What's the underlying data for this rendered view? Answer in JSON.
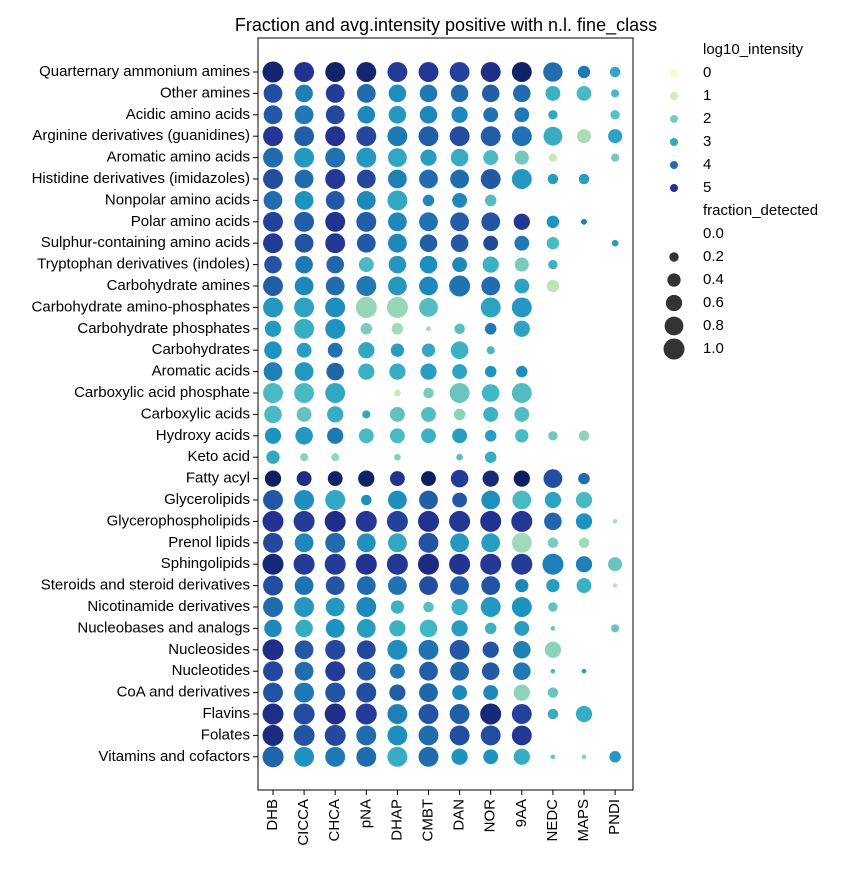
{
  "chart_data": {
    "type": "dot",
    "title": "Fraction and avg.intensity positive with n.l. fine_class",
    "columns": [
      "DHB",
      "CICCA",
      "CHCA",
      "pNA",
      "DHAP",
      "CMBT",
      "DAN",
      "NOR",
      "9AA",
      "NEDC",
      "MAPS",
      "PNDI"
    ],
    "rows": [
      "Quarternary ammonium amines",
      "Other amines",
      "Acidic amino acids",
      "Arginine derivatives (guanidines)",
      "Aromatic amino acids",
      "Histidine derivatives (imidazoles)",
      "Nonpolar amino acids",
      "Polar amino acids",
      "Sulphur-containing amino acids",
      "Tryptophan derivatives (indoles)",
      "Carbohydrate amines",
      "Carbohydrate amino-phosphates",
      "Carbohydrate phosphates",
      "Carbohydrates",
      "Aromatic acids",
      "Carboxylic acid phosphate",
      "Carboxylic acids",
      "Hydroxy acids",
      "Keto acid",
      "Fatty acyl",
      "Glycerolipids",
      "Glycerophospholipids",
      "Prenol lipids",
      "Sphingolipids",
      "Steroids and steroid derivatives",
      "Nicotinamide derivatives",
      "Nucleobases and analogs",
      "Nucleosides",
      "Nucleotides",
      "CoA and derivatives",
      "Flavins",
      "Folates",
      "Vitamins and cofactors"
    ],
    "fraction": [
      [
        1.0,
        0.9,
        0.9,
        0.9,
        0.9,
        0.9,
        0.9,
        0.9,
        0.9,
        0.85,
        0.35,
        0.25
      ],
      [
        0.8,
        0.7,
        0.8,
        0.8,
        0.7,
        0.7,
        0.7,
        0.7,
        0.7,
        0.5,
        0.5,
        0.15
      ],
      [
        0.8,
        0.8,
        0.8,
        0.7,
        0.7,
        0.7,
        0.6,
        0.5,
        0.5,
        0.2,
        null,
        0.2
      ],
      [
        0.9,
        0.9,
        0.9,
        0.9,
        0.9,
        0.9,
        0.9,
        0.9,
        0.9,
        0.8,
        0.45,
        0.45
      ],
      [
        0.9,
        0.9,
        0.9,
        0.9,
        0.8,
        0.6,
        0.7,
        0.5,
        0.45,
        0.15,
        null,
        0.15
      ],
      [
        0.9,
        0.8,
        0.9,
        0.8,
        0.8,
        0.8,
        0.8,
        0.9,
        0.9,
        0.25,
        0.25,
        null
      ],
      [
        0.8,
        0.8,
        0.8,
        0.8,
        0.9,
        0.3,
        0.5,
        0.3,
        null,
        null,
        null,
        null
      ],
      [
        0.9,
        0.9,
        0.9,
        0.9,
        0.8,
        0.8,
        0.8,
        0.8,
        0.6,
        0.35,
        0.08,
        null
      ],
      [
        0.9,
        0.8,
        0.9,
        0.8,
        0.8,
        0.7,
        0.7,
        0.5,
        0.5,
        0.35,
        null,
        0.1
      ],
      [
        0.7,
        0.7,
        0.7,
        0.5,
        0.7,
        0.7,
        0.5,
        0.6,
        0.45,
        0.2,
        null,
        null
      ],
      [
        0.9,
        0.8,
        0.8,
        0.9,
        0.8,
        0.8,
        1.0,
        0.8,
        0.5,
        0.35,
        null,
        null
      ],
      [
        0.9,
        0.9,
        0.9,
        1.0,
        1.0,
        0.8,
        null,
        0.9,
        0.9,
        null,
        null,
        null
      ],
      [
        0.6,
        0.9,
        0.9,
        0.3,
        0.3,
        0.05,
        0.25,
        0.3,
        0.6,
        null,
        null,
        null
      ],
      [
        0.7,
        0.5,
        0.5,
        0.6,
        0.4,
        0.4,
        0.7,
        0.15,
        null,
        null,
        null,
        null
      ],
      [
        0.8,
        0.8,
        0.7,
        0.6,
        0.6,
        0.6,
        0.5,
        0.3,
        0.3,
        null,
        null,
        null
      ],
      [
        0.9,
        0.9,
        0.9,
        null,
        0.1,
        0.25,
        0.9,
        0.7,
        0.9,
        null,
        null,
        null
      ],
      [
        0.7,
        0.5,
        0.6,
        0.15,
        0.5,
        0.5,
        0.3,
        0.5,
        0.5,
        null,
        null,
        null
      ],
      [
        0.6,
        0.7,
        0.6,
        0.5,
        0.5,
        0.5,
        0.5,
        0.3,
        0.4,
        0.2,
        0.25,
        null
      ],
      [
        0.4,
        0.15,
        0.15,
        null,
        0.1,
        null,
        0.1,
        0.3,
        null,
        null,
        null,
        null
      ],
      [
        0.6,
        0.5,
        0.5,
        0.6,
        0.5,
        0.5,
        0.7,
        0.6,
        0.6,
        0.8,
        0.3,
        null
      ],
      [
        0.9,
        0.9,
        0.9,
        0.25,
        0.8,
        0.8,
        0.5,
        0.8,
        0.8,
        0.6,
        0.6,
        null
      ],
      [
        1.0,
        1.0,
        1.0,
        1.0,
        1.0,
        1.0,
        1.0,
        1.0,
        1.0,
        0.7,
        0.6,
        0.05
      ],
      [
        0.9,
        0.8,
        0.9,
        0.8,
        0.8,
        0.9,
        0.8,
        0.8,
        0.9,
        0.25,
        0.25,
        null
      ],
      [
        1.0,
        1.0,
        1.0,
        1.0,
        1.0,
        1.0,
        1.0,
        1.0,
        1.0,
        1.0,
        0.6,
        0.45
      ],
      [
        0.9,
        0.8,
        0.8,
        0.8,
        0.8,
        0.8,
        0.8,
        0.8,
        0.4,
        0.4,
        0.5,
        0.05
      ],
      [
        0.9,
        0.9,
        0.8,
        0.9,
        0.4,
        0.25,
        0.6,
        0.9,
        0.9,
        0.2,
        null,
        null
      ],
      [
        0.7,
        0.7,
        0.8,
        0.8,
        0.6,
        0.7,
        0.6,
        0.3,
        0.5,
        0.05,
        null,
        0.15
      ],
      [
        1.0,
        0.8,
        0.9,
        0.8,
        0.9,
        0.9,
        0.9,
        0.6,
        0.7,
        0.6,
        null,
        null
      ],
      [
        0.9,
        0.8,
        0.9,
        0.8,
        0.5,
        0.8,
        0.8,
        0.7,
        0.7,
        0.05,
        0.05,
        null
      ],
      [
        0.9,
        0.9,
        0.9,
        0.9,
        0.6,
        0.8,
        0.5,
        0.5,
        0.6,
        0.25,
        null,
        null
      ],
      [
        1.0,
        1.0,
        1.0,
        1.0,
        0.9,
        0.9,
        0.9,
        1.0,
        0.9,
        0.25,
        0.6,
        null
      ],
      [
        1.0,
        1.0,
        1.0,
        0.9,
        0.9,
        0.9,
        0.9,
        0.9,
        0.9,
        null,
        null,
        null
      ],
      [
        1.0,
        0.9,
        0.9,
        0.9,
        0.9,
        0.9,
        0.6,
        0.5,
        0.6,
        0.05,
        0.05,
        0.3
      ]
    ],
    "log10_intensity": [
      [
        5.4,
        5.0,
        5.5,
        5.4,
        4.8,
        4.9,
        4.7,
        5.1,
        5.5,
        4.0,
        3.8,
        3.0
      ],
      [
        4.5,
        3.7,
        4.8,
        4.0,
        3.5,
        3.8,
        4.0,
        4.2,
        4.0,
        2.8,
        2.6,
        2.6
      ],
      [
        4.3,
        3.8,
        4.6,
        3.6,
        3.3,
        3.6,
        3.6,
        3.9,
        3.8,
        3.0,
        null,
        2.4
      ],
      [
        4.9,
        4.2,
        5.0,
        4.6,
        3.8,
        4.2,
        4.5,
        4.2,
        3.9,
        2.9,
        1.5,
        3.1
      ],
      [
        4.0,
        3.3,
        3.9,
        3.3,
        3.0,
        3.2,
        2.9,
        2.6,
        2.1,
        1.2,
        null,
        2.1
      ],
      [
        4.5,
        4.0,
        4.9,
        4.6,
        3.7,
        4.0,
        4.0,
        4.3,
        3.3,
        3.2,
        3.2,
        null
      ],
      [
        4.0,
        3.4,
        4.3,
        3.6,
        3.0,
        3.6,
        3.6,
        2.5,
        null,
        null,
        null,
        null
      ],
      [
        4.7,
        4.2,
        5.0,
        4.2,
        3.6,
        3.9,
        4.2,
        4.4,
        4.9,
        3.4,
        3.7,
        null
      ],
      [
        4.8,
        4.4,
        4.9,
        4.3,
        3.6,
        4.2,
        4.3,
        4.6,
        3.8,
        2.6,
        null,
        3.2
      ],
      [
        4.4,
        3.8,
        4.1,
        2.6,
        3.3,
        3.5,
        3.6,
        2.8,
        2.0,
        2.8,
        null,
        null
      ],
      [
        4.2,
        3.6,
        4.0,
        3.8,
        3.3,
        3.6,
        3.9,
        4.0,
        3.1,
        1.3,
        null,
        null
      ],
      [
        3.3,
        3.1,
        3.5,
        1.7,
        1.7,
        2.5,
        null,
        3.1,
        3.3,
        null,
        null,
        null
      ],
      [
        3.3,
        2.9,
        3.4,
        2.0,
        1.6,
        1.6,
        2.4,
        3.8,
        3.1,
        null,
        null,
        null
      ],
      [
        3.4,
        3.2,
        3.9,
        3.0,
        3.2,
        3.0,
        2.8,
        2.6,
        null,
        null,
        null,
        null
      ],
      [
        3.7,
        3.3,
        4.1,
        2.8,
        2.9,
        3.2,
        3.1,
        3.4,
        3.5,
        null,
        null,
        null
      ],
      [
        2.6,
        2.6,
        3.0,
        null,
        1.2,
        2.0,
        2.2,
        2.7,
        2.5,
        null,
        null,
        null
      ],
      [
        2.6,
        2.3,
        2.9,
        3.0,
        2.3,
        2.5,
        1.8,
        2.8,
        2.5,
        null,
        null,
        null
      ],
      [
        3.4,
        3.3,
        3.8,
        2.6,
        2.6,
        2.8,
        3.2,
        3.2,
        2.6,
        2.1,
        1.8,
        null
      ],
      [
        3.0,
        1.8,
        1.7,
        null,
        1.9,
        null,
        2.4,
        2.9,
        null,
        null,
        null,
        null
      ],
      [
        5.6,
        5.1,
        5.5,
        5.5,
        5.0,
        5.6,
        4.8,
        5.3,
        5.6,
        4.5,
        4.0,
        null
      ],
      [
        4.3,
        3.5,
        3.0,
        3.5,
        3.5,
        4.2,
        4.3,
        3.5,
        2.6,
        3.1,
        2.6,
        null
      ],
      [
        5.0,
        4.8,
        5.1,
        4.9,
        4.7,
        5.0,
        4.9,
        5.0,
        4.9,
        4.1,
        3.4,
        1.5
      ],
      [
        4.6,
        3.6,
        4.0,
        3.4,
        3.0,
        4.4,
        3.3,
        3.2,
        1.6,
        2.0,
        1.6,
        null
      ],
      [
        5.3,
        4.8,
        4.8,
        5.0,
        4.9,
        5.2,
        5.0,
        4.9,
        4.8,
        3.7,
        3.7,
        2.2
      ],
      [
        4.5,
        3.9,
        4.4,
        4.0,
        3.9,
        4.5,
        4.2,
        4.4,
        3.6,
        3.2,
        2.8,
        1.3
      ],
      [
        4.0,
        3.3,
        3.3,
        3.6,
        2.8,
        2.4,
        2.8,
        3.3,
        3.4,
        2.3,
        null,
        null
      ],
      [
        3.6,
        2.9,
        3.4,
        3.2,
        2.8,
        2.7,
        3.2,
        2.8,
        3.2,
        2.2,
        null,
        2.2
      ],
      [
        5.1,
        4.3,
        4.6,
        4.6,
        3.5,
        3.9,
        4.3,
        4.4,
        3.7,
        1.8,
        null,
        null
      ],
      [
        4.6,
        4.0,
        4.8,
        4.3,
        3.8,
        4.2,
        4.1,
        4.3,
        3.8,
        2.6,
        3.2,
        null
      ],
      [
        4.4,
        3.8,
        4.4,
        4.5,
        4.2,
        4.1,
        3.6,
        3.6,
        1.8,
        2.2,
        null,
        null
      ],
      [
        5.1,
        4.5,
        5.1,
        4.8,
        3.7,
        4.4,
        4.2,
        5.3,
        4.7,
        2.9,
        2.9,
        null
      ],
      [
        5.2,
        4.4,
        4.6,
        4.0,
        3.5,
        4.0,
        4.5,
        4.5,
        4.9,
        null,
        null,
        null
      ],
      [
        4.1,
        3.4,
        3.8,
        4.0,
        2.9,
        4.0,
        3.4,
        3.4,
        2.9,
        2.2,
        1.8,
        3.3
      ]
    ],
    "colormap": [
      "#ffffd9",
      "#edf8b1",
      "#c7e9b4",
      "#7fcdbb",
      "#41b6c4",
      "#1d91c0",
      "#225ea8",
      "#253494",
      "#081d58"
    ],
    "clim": [
      -0.3,
      5.7
    ],
    "color_legend": {
      "title": "log10_intensity",
      "values": [
        0,
        1,
        2,
        3,
        4,
        5
      ]
    },
    "size_legend": {
      "title": "fraction_detected",
      "values": [
        {
          "value": 0,
          "label": "0.0"
        },
        0.2,
        0.4,
        0.6,
        0.8,
        {
          "value": 1,
          "label": "1.0"
        }
      ]
    },
    "legend_position": "outside right"
  }
}
